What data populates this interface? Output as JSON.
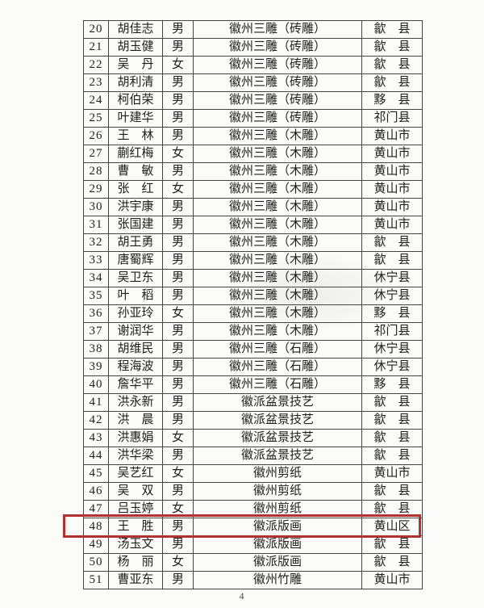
{
  "page": {
    "number_label": "4"
  },
  "highlight": {
    "row_no": "48",
    "color": "#b23131"
  },
  "table": {
    "rows": [
      {
        "no": "20",
        "name": "胡佳志",
        "gender": "男",
        "craft": "徽州三雕（砖雕）",
        "region": "歙　县"
      },
      {
        "no": "21",
        "name": "胡玉健",
        "gender": "男",
        "craft": "徽州三雕（砖雕）",
        "region": "歙　县"
      },
      {
        "no": "22",
        "name": "吴　丹",
        "gender": "女",
        "craft": "徽州三雕（砖雕）",
        "region": "歙　县"
      },
      {
        "no": "23",
        "name": "胡利清",
        "gender": "男",
        "craft": "徽州三雕（砖雕）",
        "region": "歙　县"
      },
      {
        "no": "24",
        "name": "柯伯荣",
        "gender": "男",
        "craft": "徽州三雕（砖雕）",
        "region": "黟　县"
      },
      {
        "no": "25",
        "name": "叶建华",
        "gender": "男",
        "craft": "徽州三雕（砖雕）",
        "region": "祁门县"
      },
      {
        "no": "26",
        "name": "王　林",
        "gender": "男",
        "craft": "徽州三雕（木雕）",
        "region": "黄山市"
      },
      {
        "no": "27",
        "name": "蒯红梅",
        "gender": "女",
        "craft": "徽州三雕（木雕）",
        "region": "黄山市"
      },
      {
        "no": "28",
        "name": "曹　敏",
        "gender": "男",
        "craft": "徽州三雕（木雕）",
        "region": "黄山市"
      },
      {
        "no": "29",
        "name": "张　红",
        "gender": "女",
        "craft": "徽州三雕（木雕）",
        "region": "黄山市"
      },
      {
        "no": "30",
        "name": "洪宇康",
        "gender": "男",
        "craft": "徽州三雕（木雕）",
        "region": "黄山市"
      },
      {
        "no": "31",
        "name": "张国建",
        "gender": "男",
        "craft": "徽州三雕（木雕）",
        "region": "黄山市"
      },
      {
        "no": "32",
        "name": "胡王勇",
        "gender": "男",
        "craft": "徽州三雕（木雕）",
        "region": "歙　县"
      },
      {
        "no": "33",
        "name": "唐蜀辉",
        "gender": "男",
        "craft": "徽州三雕（木雕）",
        "region": "歙　县"
      },
      {
        "no": "34",
        "name": "吴卫东",
        "gender": "男",
        "craft": "徽州三雕（木雕）",
        "region": "休宁县"
      },
      {
        "no": "35",
        "name": "叶　稻",
        "gender": "男",
        "craft": "徽州三雕（木雕）",
        "region": "休宁县"
      },
      {
        "no": "36",
        "name": "孙亚玲",
        "gender": "女",
        "craft": "徽州三雕（木雕）",
        "region": "黟　县"
      },
      {
        "no": "37",
        "name": "谢润华",
        "gender": "男",
        "craft": "徽州三雕（木雕）",
        "region": "祁门县"
      },
      {
        "no": "38",
        "name": "胡维民",
        "gender": "男",
        "craft": "徽州三雕（石雕）",
        "region": "休宁县"
      },
      {
        "no": "39",
        "name": "程海波",
        "gender": "男",
        "craft": "徽州三雕（石雕）",
        "region": "休宁县"
      },
      {
        "no": "40",
        "name": "詹华平",
        "gender": "男",
        "craft": "徽州三雕（石雕）",
        "region": "黟　县"
      },
      {
        "no": "41",
        "name": "洪永新",
        "gender": "男",
        "craft": "徽派盆景技艺",
        "region": "歙　县"
      },
      {
        "no": "42",
        "name": "洪　晨",
        "gender": "男",
        "craft": "徽派盆景技艺",
        "region": "歙　县"
      },
      {
        "no": "43",
        "name": "洪惠娟",
        "gender": "女",
        "craft": "徽派盆景技艺",
        "region": "歙　县"
      },
      {
        "no": "44",
        "name": "洪华梁",
        "gender": "男",
        "craft": "徽派盆景技艺",
        "region": "歙　县"
      },
      {
        "no": "45",
        "name": "吴艺红",
        "gender": "女",
        "craft": "徽州剪纸",
        "region": "黄山市"
      },
      {
        "no": "46",
        "name": "吴　双",
        "gender": "男",
        "craft": "徽州剪纸",
        "region": "歙　县"
      },
      {
        "no": "47",
        "name": "吕玉婷",
        "gender": "女",
        "craft": "徽州剪纸",
        "region": "歙　县"
      },
      {
        "no": "48",
        "name": "王　胜",
        "gender": "男",
        "craft": "徽派版画",
        "region": "黄山区"
      },
      {
        "no": "49",
        "name": "汤玉文",
        "gender": "男",
        "craft": "徽派版画",
        "region": "歙　县"
      },
      {
        "no": "50",
        "name": "杨　丽",
        "gender": "女",
        "craft": "徽派版画",
        "region": "歙　县"
      },
      {
        "no": "51",
        "name": "曹亚东",
        "gender": "男",
        "craft": "徽州竹雕",
        "region": "黄山市"
      }
    ]
  }
}
